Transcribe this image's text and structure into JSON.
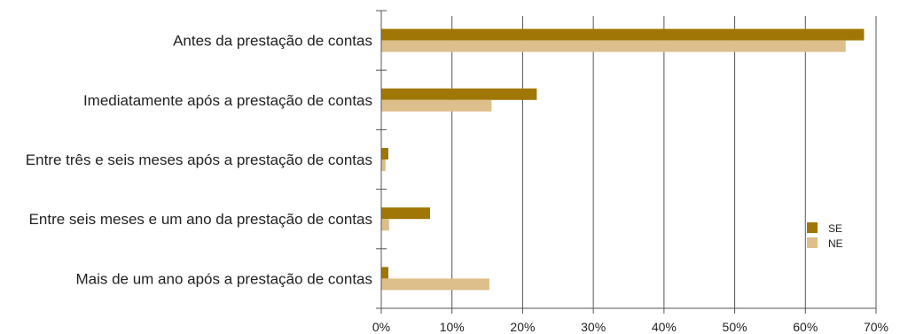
{
  "chart_data": {
    "type": "bar",
    "orientation": "horizontal",
    "categories": [
      "Antes da prestação de contas",
      "Imediatamente após a prestação de contas",
      "Entre três e seis meses após a prestação de contas",
      "Entre seis meses e um ano da prestação de contas",
      "Mais de um ano após a prestação de contas"
    ],
    "series": [
      {
        "name": "SE",
        "color": "#a07606",
        "values": [
          68.3,
          22.0,
          1.0,
          6.9,
          1.0
        ]
      },
      {
        "name": "NE",
        "color": "#dcbf8a",
        "values": [
          65.7,
          15.6,
          0.6,
          1.1,
          15.3
        ]
      }
    ],
    "xlim": [
      0,
      70
    ],
    "xticks": [
      0,
      10,
      20,
      30,
      40,
      50,
      60,
      70
    ],
    "xtick_labels": [
      "0%",
      "10%",
      "20%",
      "30%",
      "40%",
      "50%",
      "60%",
      "70%"
    ],
    "title": "",
    "xlabel": "",
    "ylabel": "",
    "grid": "vertical",
    "legend_position": "right"
  }
}
